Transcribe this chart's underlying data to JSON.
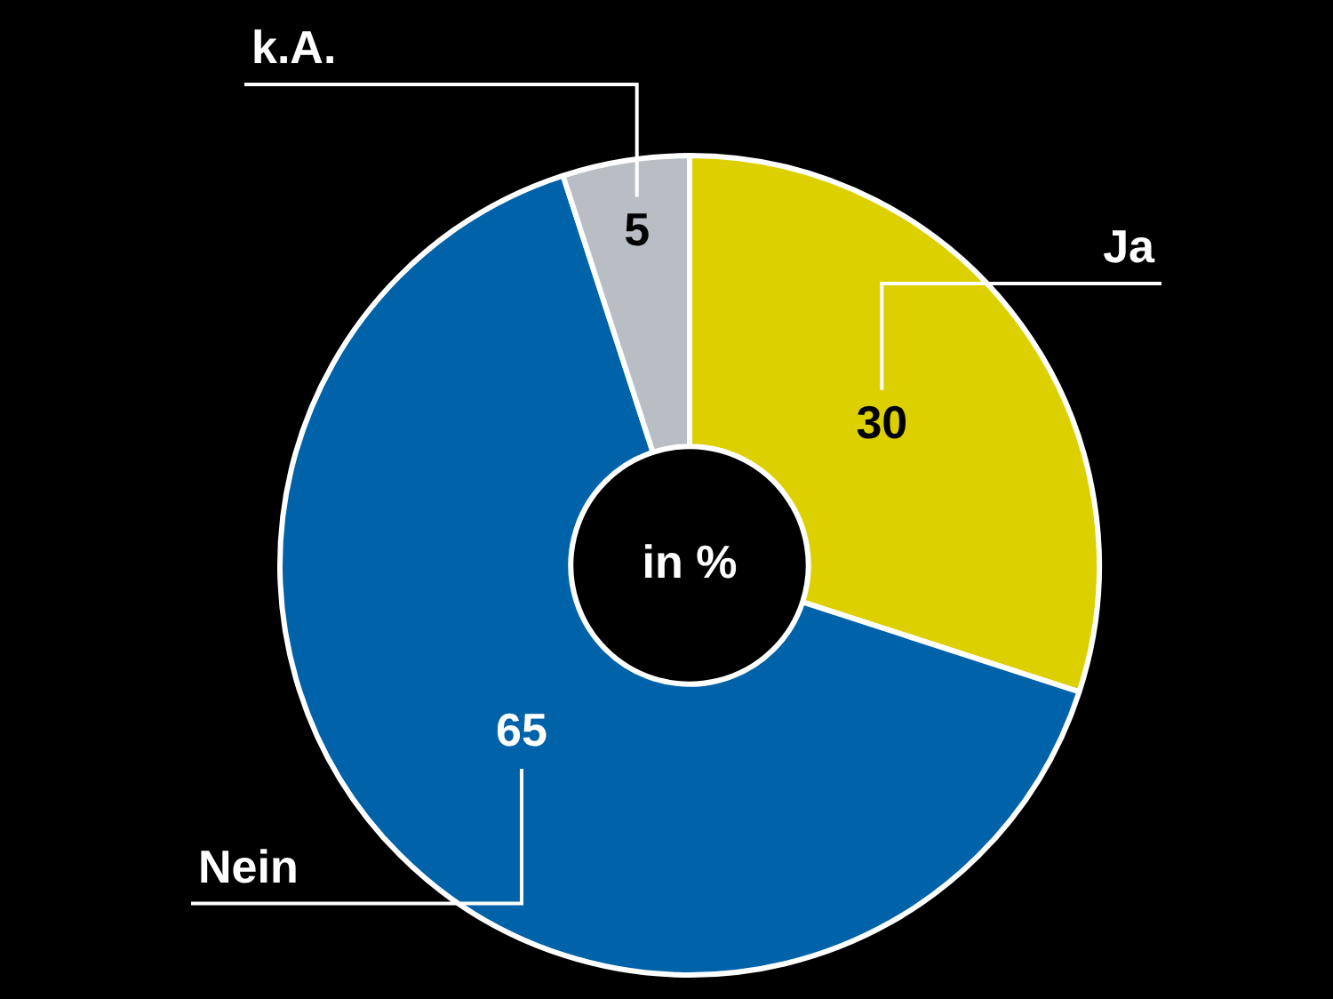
{
  "chart_data": {
    "type": "donut",
    "categories": [
      "Ja",
      "Nein",
      "k.A."
    ],
    "values": [
      30,
      65,
      5
    ],
    "colors": [
      "#ddd000",
      "#0062a8",
      "#b8bec4"
    ],
    "data_labels": true,
    "legend": false,
    "annotations": [
      "in %"
    ]
  }
}
